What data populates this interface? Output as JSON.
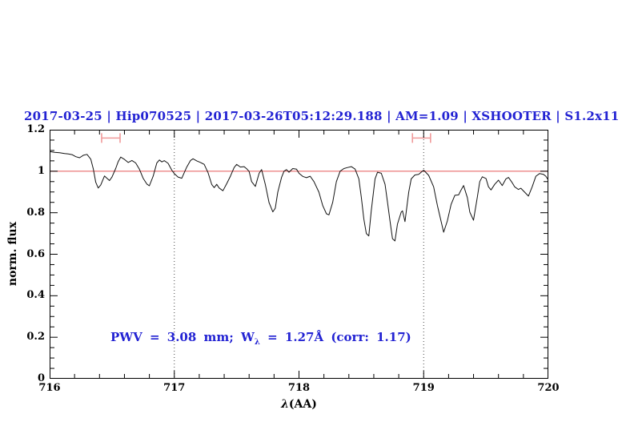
{
  "chart_data": {
    "type": "line",
    "title": "2017-03-25 | Hip070525 | 2017-03-26T05:12:29.188 | AM=1.09 | XSHOOTER | S1.2x11",
    "xlabel_greek": "λ",
    "xlabel_units": "(AA)",
    "ylabel": "norm. flux",
    "xlim": [
      716,
      720
    ],
    "ylim": [
      0,
      1.2
    ],
    "x_tick_labels": [
      "716",
      "717",
      "718",
      "719",
      "720"
    ],
    "x_tick_values": [
      716,
      717,
      718,
      719,
      720
    ],
    "x_minor_step": 0.2,
    "y_tick_labels": [
      "1.2",
      "1",
      "0.8",
      "0.6",
      "0.4",
      "0.2",
      "0"
    ],
    "y_tick_values": [
      1.2,
      1.0,
      0.8,
      0.6,
      0.4,
      0.2,
      0
    ],
    "y_minor_step": 0.05,
    "grid": "off",
    "legend": "none",
    "colors": {
      "title_blue": "#2323d3",
      "annotation_blue": "#2323d3",
      "continuum_red": "#e86a6a",
      "marker_pink": "#f09a9a",
      "spectrum_black": "#111111",
      "dotted_line_gray": "#444444"
    },
    "continuum_line": {
      "y": 1.0
    },
    "dotted_vlines": [
      717,
      719
    ],
    "line_markers": [
      {
        "x_start": 716.417,
        "x_end": 716.565,
        "y": 1.16
      },
      {
        "x_start": 718.91,
        "x_end": 719.055,
        "y": 1.16
      }
    ],
    "annotation": {
      "prefix": "PWV = 3.08 mm; W",
      "subscript": "λ",
      "suffix": " = 1.27Å (corr: 1.17)"
    },
    "series": [
      {
        "name": "normalized-spectrum",
        "points": [
          [
            716.0,
            1.095
          ],
          [
            716.04,
            1.091
          ],
          [
            716.08,
            1.089
          ],
          [
            716.12,
            1.085
          ],
          [
            716.15,
            1.083
          ],
          [
            716.18,
            1.08
          ],
          [
            716.21,
            1.07
          ],
          [
            716.24,
            1.065
          ],
          [
            716.27,
            1.077
          ],
          [
            716.3,
            1.081
          ],
          [
            716.33,
            1.058
          ],
          [
            716.35,
            1.012
          ],
          [
            716.37,
            0.947
          ],
          [
            716.39,
            0.919
          ],
          [
            716.41,
            0.934
          ],
          [
            716.43,
            0.963
          ],
          [
            716.44,
            0.977
          ],
          [
            716.46,
            0.966
          ],
          [
            716.48,
            0.955
          ],
          [
            716.5,
            0.972
          ],
          [
            716.53,
            1.013
          ],
          [
            716.55,
            1.047
          ],
          [
            716.57,
            1.068
          ],
          [
            716.6,
            1.057
          ],
          [
            716.63,
            1.042
          ],
          [
            716.66,
            1.052
          ],
          [
            716.69,
            1.04
          ],
          [
            716.72,
            1.01
          ],
          [
            716.75,
            0.966
          ],
          [
            716.78,
            0.938
          ],
          [
            716.8,
            0.93
          ],
          [
            716.83,
            0.976
          ],
          [
            716.86,
            1.04
          ],
          [
            716.88,
            1.054
          ],
          [
            716.9,
            1.045
          ],
          [
            716.92,
            1.051
          ],
          [
            716.95,
            1.038
          ],
          [
            716.98,
            1.005
          ],
          [
            717.0,
            0.988
          ],
          [
            717.03,
            0.972
          ],
          [
            717.06,
            0.966
          ],
          [
            717.1,
            1.02
          ],
          [
            717.13,
            1.052
          ],
          [
            717.15,
            1.06
          ],
          [
            717.18,
            1.05
          ],
          [
            717.21,
            1.042
          ],
          [
            717.24,
            1.033
          ],
          [
            717.27,
            0.994
          ],
          [
            717.3,
            0.936
          ],
          [
            717.32,
            0.921
          ],
          [
            717.34,
            0.937
          ],
          [
            717.36,
            0.919
          ],
          [
            717.39,
            0.906
          ],
          [
            717.42,
            0.94
          ],
          [
            717.45,
            0.976
          ],
          [
            717.48,
            1.018
          ],
          [
            717.5,
            1.033
          ],
          [
            717.53,
            1.02
          ],
          [
            717.56,
            1.022
          ],
          [
            717.58,
            1.012
          ],
          [
            717.6,
            0.999
          ],
          [
            717.62,
            0.95
          ],
          [
            717.65,
            0.927
          ],
          [
            717.68,
            0.99
          ],
          [
            717.7,
            1.008
          ],
          [
            717.73,
            0.937
          ],
          [
            717.76,
            0.849
          ],
          [
            717.79,
            0.804
          ],
          [
            717.81,
            0.822
          ],
          [
            717.83,
            0.899
          ],
          [
            717.86,
            0.97
          ],
          [
            717.88,
            1.0
          ],
          [
            717.9,
            1.008
          ],
          [
            717.92,
            0.995
          ],
          [
            717.95,
            1.013
          ],
          [
            717.98,
            1.01
          ],
          [
            718.0,
            0.99
          ],
          [
            718.03,
            0.975
          ],
          [
            718.06,
            0.969
          ],
          [
            718.09,
            0.976
          ],
          [
            718.12,
            0.95
          ],
          [
            718.16,
            0.899
          ],
          [
            718.19,
            0.835
          ],
          [
            718.22,
            0.795
          ],
          [
            718.24,
            0.79
          ],
          [
            718.27,
            0.85
          ],
          [
            718.3,
            0.95
          ],
          [
            718.33,
            1.0
          ],
          [
            718.36,
            1.013
          ],
          [
            718.39,
            1.018
          ],
          [
            718.42,
            1.022
          ],
          [
            718.45,
            1.01
          ],
          [
            718.48,
            0.963
          ],
          [
            718.5,
            0.873
          ],
          [
            718.52,
            0.77
          ],
          [
            718.54,
            0.7
          ],
          [
            718.56,
            0.688
          ],
          [
            718.58,
            0.81
          ],
          [
            718.61,
            0.963
          ],
          [
            718.63,
            0.995
          ],
          [
            718.66,
            0.99
          ],
          [
            718.69,
            0.937
          ],
          [
            718.71,
            0.85
          ],
          [
            718.73,
            0.76
          ],
          [
            718.75,
            0.675
          ],
          [
            718.77,
            0.664
          ],
          [
            718.79,
            0.745
          ],
          [
            718.82,
            0.803
          ],
          [
            718.83,
            0.809
          ],
          [
            718.85,
            0.757
          ],
          [
            718.88,
            0.9
          ],
          [
            718.9,
            0.963
          ],
          [
            718.93,
            0.982
          ],
          [
            718.96,
            0.985
          ],
          [
            718.99,
            1.0
          ],
          [
            719.0,
            1.005
          ],
          [
            719.04,
            0.98
          ],
          [
            719.08,
            0.925
          ],
          [
            719.11,
            0.835
          ],
          [
            719.14,
            0.757
          ],
          [
            719.16,
            0.706
          ],
          [
            719.19,
            0.76
          ],
          [
            719.22,
            0.84
          ],
          [
            719.25,
            0.884
          ],
          [
            719.28,
            0.886
          ],
          [
            719.3,
            0.91
          ],
          [
            719.32,
            0.931
          ],
          [
            719.35,
            0.873
          ],
          [
            719.37,
            0.803
          ],
          [
            719.4,
            0.764
          ],
          [
            719.43,
            0.873
          ],
          [
            719.45,
            0.95
          ],
          [
            719.47,
            0.973
          ],
          [
            719.5,
            0.965
          ],
          [
            719.52,
            0.925
          ],
          [
            719.54,
            0.91
          ],
          [
            719.57,
            0.937
          ],
          [
            719.6,
            0.957
          ],
          [
            719.63,
            0.931
          ],
          [
            719.66,
            0.963
          ],
          [
            719.68,
            0.97
          ],
          [
            719.71,
            0.945
          ],
          [
            719.73,
            0.925
          ],
          [
            719.76,
            0.912
          ],
          [
            719.78,
            0.918
          ],
          [
            719.81,
            0.899
          ],
          [
            719.84,
            0.88
          ],
          [
            719.87,
            0.925
          ],
          [
            719.9,
            0.976
          ],
          [
            719.93,
            0.989
          ],
          [
            719.96,
            0.985
          ],
          [
            719.98,
            0.976
          ],
          [
            720.0,
            0.957
          ]
        ]
      }
    ]
  }
}
